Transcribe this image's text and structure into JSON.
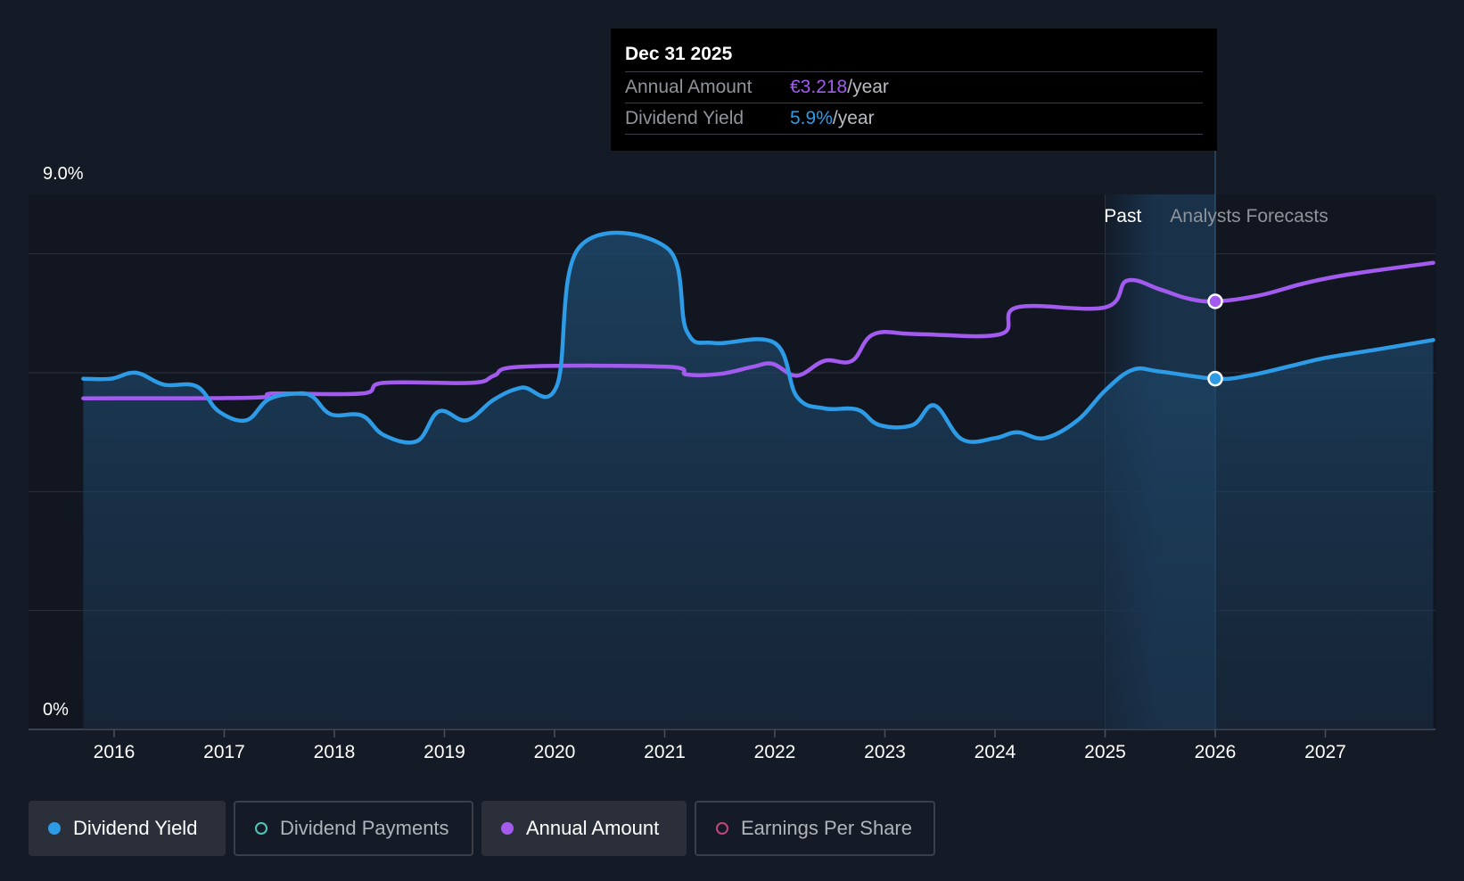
{
  "tooltip": {
    "date": "Dec 31 2025",
    "annual_label": "Annual Amount",
    "annual_value": "€3.218",
    "yield_label": "Dividend Yield",
    "yield_value": "5.9%",
    "unit": "/year"
  },
  "legend": [
    {
      "label": "Dividend Yield",
      "color": "#2e9be6",
      "active": true
    },
    {
      "label": "Dividend Payments",
      "color": "#4fc6b8",
      "active": false
    },
    {
      "label": "Annual Amount",
      "color": "#a35bef",
      "active": true
    },
    {
      "label": "Earnings Per Share",
      "color": "#c0467a",
      "active": false
    }
  ],
  "chart_data": {
    "type": "line",
    "ylim": [
      0,
      9.0
    ],
    "y_tick_labels": [
      "9.0%",
      "0%"
    ],
    "x_tick_labels": [
      "2016",
      "2017",
      "2018",
      "2019",
      "2020",
      "2021",
      "2022",
      "2023",
      "2024",
      "2025",
      "2026",
      "2027"
    ],
    "xlim": [
      2015.7,
      2027.98
    ],
    "grid": true,
    "regions": {
      "past_label": "Past",
      "forecast_label": "Analysts Forecasts",
      "forecast_start": 2025.46,
      "cursor": 2026.0
    },
    "series": [
      {
        "name": "Dividend Yield",
        "color": "#2e9be6",
        "area": true,
        "points": [
          [
            2015.72,
            5.9
          ],
          [
            2015.97,
            5.9
          ],
          [
            2016.2,
            6.0
          ],
          [
            2016.45,
            5.8
          ],
          [
            2016.75,
            5.77
          ],
          [
            2016.95,
            5.35
          ],
          [
            2017.2,
            5.2
          ],
          [
            2017.4,
            5.55
          ],
          [
            2017.65,
            5.65
          ],
          [
            2017.8,
            5.6
          ],
          [
            2017.97,
            5.3
          ],
          [
            2018.25,
            5.28
          ],
          [
            2018.45,
            4.95
          ],
          [
            2018.75,
            4.85
          ],
          [
            2018.95,
            5.35
          ],
          [
            2019.2,
            5.2
          ],
          [
            2019.45,
            5.55
          ],
          [
            2019.7,
            5.75
          ],
          [
            2020.02,
            5.78
          ],
          [
            2020.22,
            8.1
          ],
          [
            2021.02,
            8.1
          ],
          [
            2021.2,
            6.7
          ],
          [
            2021.45,
            6.5
          ],
          [
            2022.0,
            6.5
          ],
          [
            2022.2,
            5.6
          ],
          [
            2022.45,
            5.4
          ],
          [
            2022.75,
            5.38
          ],
          [
            2022.95,
            5.12
          ],
          [
            2023.25,
            5.12
          ],
          [
            2023.45,
            5.45
          ],
          [
            2023.7,
            4.88
          ],
          [
            2024.0,
            4.9
          ],
          [
            2024.2,
            5.0
          ],
          [
            2024.45,
            4.9
          ],
          [
            2024.75,
            5.2
          ],
          [
            2025.0,
            5.7
          ],
          [
            2025.25,
            6.05
          ],
          [
            2025.5,
            6.02
          ],
          [
            2026.0,
            5.9
          ],
          [
            2026.3,
            5.95
          ],
          [
            2026.7,
            6.12
          ],
          [
            2027.0,
            6.25
          ],
          [
            2027.5,
            6.4
          ],
          [
            2027.98,
            6.55
          ]
        ]
      },
      {
        "name": "Annual Amount",
        "color": "#a35bef",
        "area": false,
        "points": [
          [
            2015.72,
            5.57
          ],
          [
            2017.25,
            5.58
          ],
          [
            2017.45,
            5.65
          ],
          [
            2018.25,
            5.65
          ],
          [
            2018.45,
            5.83
          ],
          [
            2019.25,
            5.83
          ],
          [
            2019.45,
            5.95
          ],
          [
            2019.7,
            6.1
          ],
          [
            2021.02,
            6.1
          ],
          [
            2021.2,
            5.97
          ],
          [
            2021.5,
            5.98
          ],
          [
            2021.8,
            6.1
          ],
          [
            2021.98,
            6.15
          ],
          [
            2022.2,
            5.95
          ],
          [
            2022.45,
            6.2
          ],
          [
            2022.7,
            6.2
          ],
          [
            2022.9,
            6.65
          ],
          [
            2023.3,
            6.65
          ],
          [
            2024.05,
            6.65
          ],
          [
            2024.2,
            7.1
          ],
          [
            2025.0,
            7.1
          ],
          [
            2025.2,
            7.55
          ],
          [
            2025.5,
            7.4
          ],
          [
            2025.75,
            7.25
          ],
          [
            2026.0,
            7.2
          ],
          [
            2026.4,
            7.3
          ],
          [
            2026.8,
            7.5
          ],
          [
            2027.2,
            7.65
          ],
          [
            2027.98,
            7.85
          ]
        ]
      }
    ],
    "highlights": [
      {
        "series": "Annual Amount",
        "x": 2026.0,
        "y": 7.2
      },
      {
        "series": "Dividend Yield",
        "x": 2026.0,
        "y": 5.9
      }
    ]
  }
}
